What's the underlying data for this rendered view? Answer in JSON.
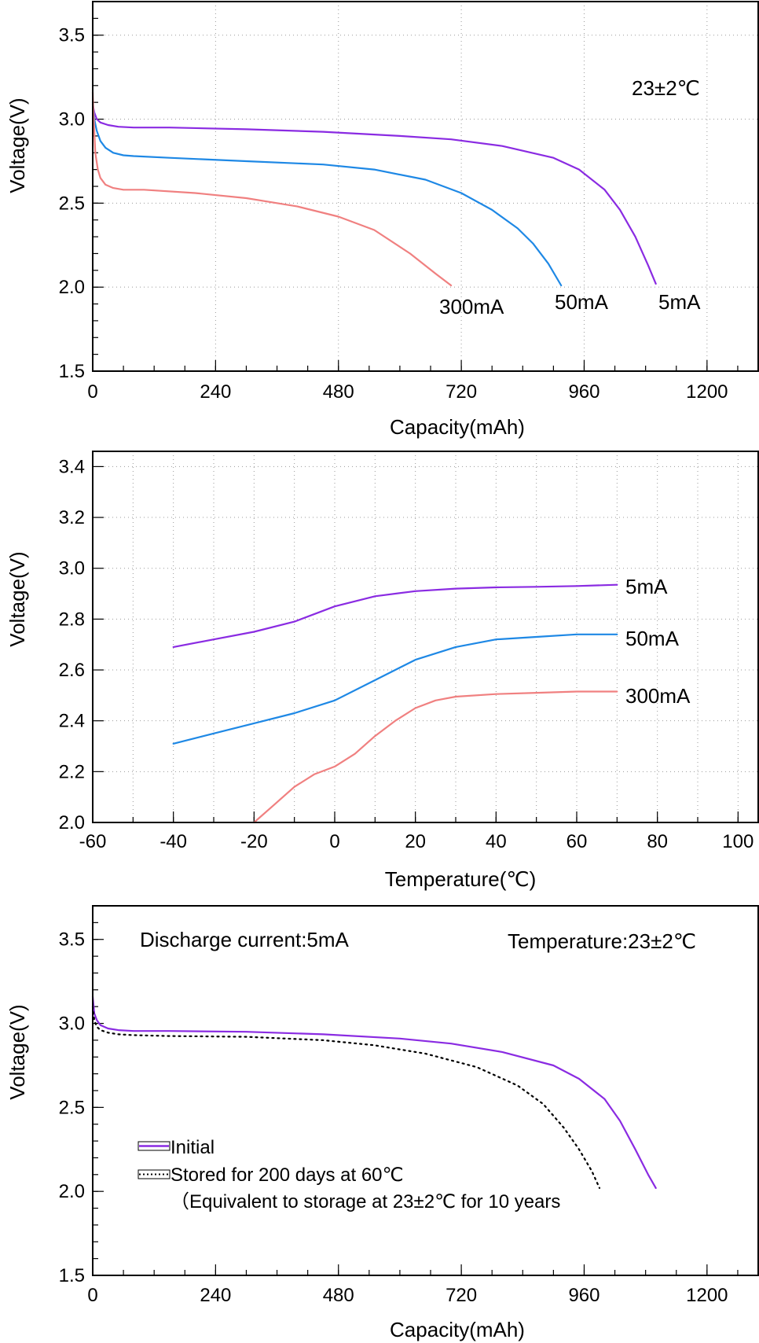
{
  "colors": {
    "purple": "#8a2be2",
    "blue": "#1e88e5",
    "red": "#f08080",
    "black": "#000000"
  },
  "chart_data": [
    {
      "type": "line",
      "xlabel": "Capacity(mAh)",
      "ylabel": "Voltage(V)",
      "xlim": [
        0,
        1300
      ],
      "ylim": [
        1.5,
        3.7
      ],
      "xticks": [
        0,
        240,
        480,
        720,
        960,
        1200
      ],
      "yticks": [
        1.5,
        2.0,
        2.5,
        3.0,
        3.5
      ],
      "grid": true,
      "annotations": [
        "23±2℃"
      ],
      "series": [
        {
          "name": "5mA",
          "color": "#8a2be2",
          "x": [
            0,
            3,
            8,
            15,
            30,
            50,
            80,
            150,
            300,
            450,
            600,
            700,
            800,
            900,
            950,
            1000,
            1030,
            1060,
            1085,
            1100
          ],
          "y": [
            3.09,
            3.04,
            3.0,
            2.98,
            2.965,
            2.955,
            2.95,
            2.95,
            2.94,
            2.925,
            2.9,
            2.88,
            2.84,
            2.77,
            2.7,
            2.58,
            2.46,
            2.3,
            2.13,
            2.02
          ]
        },
        {
          "name": "50mA",
          "color": "#1e88e5",
          "x": [
            0,
            3,
            8,
            15,
            25,
            40,
            60,
            80,
            150,
            300,
            450,
            550,
            650,
            720,
            780,
            830,
            860,
            890,
            915
          ],
          "y": [
            3.1,
            3.0,
            2.93,
            2.87,
            2.83,
            2.8,
            2.785,
            2.78,
            2.77,
            2.75,
            2.73,
            2.7,
            2.64,
            2.56,
            2.46,
            2.35,
            2.26,
            2.14,
            2.01
          ]
        },
        {
          "name": "300mA",
          "color": "#f08080",
          "x": [
            0,
            2,
            5,
            10,
            15,
            25,
            40,
            60,
            100,
            200,
            300,
            400,
            480,
            550,
            620,
            670,
            700
          ],
          "y": [
            3.16,
            3.0,
            2.8,
            2.7,
            2.65,
            2.61,
            2.59,
            2.58,
            2.58,
            2.56,
            2.53,
            2.48,
            2.42,
            2.34,
            2.2,
            2.08,
            2.01
          ]
        }
      ]
    },
    {
      "type": "line",
      "xlabel": "Temperature(℃)",
      "ylabel": "Voltage(V)",
      "xlim": [
        -60,
        105
      ],
      "ylim": [
        2.0,
        3.46
      ],
      "xticks": [
        -60,
        -40,
        -20,
        0,
        20,
        40,
        60,
        80,
        100
      ],
      "yticks": [
        2.0,
        2.2,
        2.4,
        2.6,
        2.8,
        3.0,
        3.2,
        3.4
      ],
      "grid": true,
      "series": [
        {
          "name": "5mA",
          "color": "#8a2be2",
          "x": [
            -40,
            -30,
            -20,
            -10,
            0,
            10,
            20,
            30,
            40,
            50,
            60,
            70
          ],
          "y": [
            2.69,
            2.72,
            2.75,
            2.79,
            2.85,
            2.89,
            2.91,
            2.92,
            2.925,
            2.927,
            2.93,
            2.935
          ]
        },
        {
          "name": "50mA",
          "color": "#1e88e5",
          "x": [
            -40,
            -30,
            -20,
            -10,
            0,
            10,
            20,
            30,
            40,
            50,
            60,
            70
          ],
          "y": [
            2.31,
            2.35,
            2.39,
            2.43,
            2.48,
            2.56,
            2.64,
            2.69,
            2.72,
            2.73,
            2.74,
            2.74
          ]
        },
        {
          "name": "300mA",
          "color": "#f08080",
          "x": [
            -20,
            -15,
            -10,
            -5,
            0,
            5,
            10,
            15,
            20,
            25,
            30,
            40,
            50,
            60,
            70
          ],
          "y": [
            2.0,
            2.07,
            2.14,
            2.19,
            2.22,
            2.27,
            2.34,
            2.4,
            2.45,
            2.48,
            2.495,
            2.505,
            2.51,
            2.515,
            2.515
          ]
        }
      ]
    },
    {
      "type": "line",
      "xlabel": "Capacity(mAh)",
      "ylabel": "Voltage(V)",
      "xlim": [
        0,
        1300
      ],
      "ylim": [
        1.5,
        3.7
      ],
      "xticks": [
        0,
        240,
        480,
        720,
        960,
        1200
      ],
      "yticks": [
        1.5,
        2.0,
        2.5,
        3.0,
        3.5
      ],
      "grid": false,
      "annotations": [
        "Discharge current:5mA",
        "Temperature:23±2℃"
      ],
      "legend": [
        "Initial",
        "Stored for 200 days at 60℃",
        "（Equivalent to storage at 23±2℃ for 10 years"
      ],
      "series": [
        {
          "name": "Initial",
          "color": "#8a2be2",
          "x": [
            0,
            3,
            8,
            15,
            30,
            50,
            80,
            150,
            300,
            450,
            600,
            700,
            800,
            900,
            950,
            1000,
            1030,
            1060,
            1085,
            1100
          ],
          "y": [
            3.16,
            3.06,
            3.02,
            2.99,
            2.97,
            2.96,
            2.955,
            2.955,
            2.95,
            2.935,
            2.91,
            2.88,
            2.83,
            2.75,
            2.67,
            2.55,
            2.42,
            2.25,
            2.1,
            2.02
          ]
        },
        {
          "name": "Stored for 200 days at 60℃",
          "color": "#000000",
          "x": [
            0,
            3,
            8,
            15,
            30,
            50,
            80,
            150,
            300,
            450,
            550,
            650,
            750,
            830,
            880,
            920,
            950,
            975,
            990
          ],
          "y": [
            3.1,
            3.02,
            2.98,
            2.96,
            2.945,
            2.935,
            2.93,
            2.925,
            2.92,
            2.9,
            2.87,
            2.82,
            2.74,
            2.63,
            2.52,
            2.38,
            2.25,
            2.12,
            2.02
          ]
        }
      ]
    }
  ],
  "panel1": {
    "xlabel": "Capacity(mAh)",
    "ylabel": "Voltage(V)",
    "xtick_labels": [
      "0",
      "240",
      "480",
      "720",
      "960",
      "1200"
    ],
    "ytick_labels": [
      "1.5",
      "2.0",
      "2.5",
      "3.0",
      "3.5"
    ],
    "annotation": "23±2℃",
    "label_5mA": "5mA",
    "label_50mA": "50mA",
    "label_300mA": "300mA"
  },
  "panel2": {
    "xlabel": "Temperature(℃)",
    "ylabel": "Voltage(V)",
    "xtick_labels": [
      "-60",
      "-40",
      "-20",
      "0",
      "20",
      "40",
      "60",
      "80",
      "100"
    ],
    "ytick_labels": [
      "2.0",
      "2.2",
      "2.4",
      "2.6",
      "2.8",
      "3.0",
      "3.2",
      "3.4"
    ],
    "label_5mA": "5mA",
    "label_50mA": "50mA",
    "label_300mA": "300mA"
  },
  "panel3": {
    "xlabel": "Capacity(mAh)",
    "ylabel": "Voltage(V)",
    "xtick_labels": [
      "0",
      "240",
      "480",
      "720",
      "960",
      "1200"
    ],
    "ytick_labels": [
      "1.5",
      "2.0",
      "2.5",
      "3.0",
      "3.5"
    ],
    "annotation_current": "Discharge current:5mA",
    "annotation_temp": "Temperature:23±2℃",
    "legend_initial": "Initial",
    "legend_stored": "Stored for 200 days at 60℃",
    "legend_equiv": "（Equivalent to storage at 23±2℃ for 10 years"
  }
}
